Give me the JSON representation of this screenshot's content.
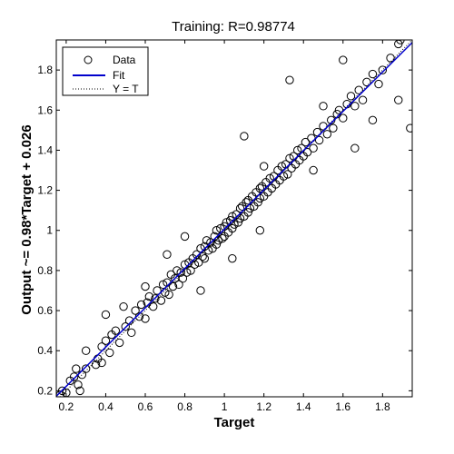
{
  "chart_data": {
    "type": "scatter",
    "title": "Training: R=0.98774",
    "xlabel": "Target",
    "ylabel": "Output ~= 0.98*Target + 0.026",
    "xlim": [
      0.15,
      1.95
    ],
    "ylim": [
      0.17,
      1.95
    ],
    "xticks": [
      0.2,
      0.4,
      0.6,
      0.8,
      1.0,
      1.2,
      1.4,
      1.6,
      1.8
    ],
    "xtick_labels": [
      "0.2",
      "0.4",
      "0.6",
      "0.8",
      "1",
      "1.2",
      "1.4",
      "1.6",
      "1.8"
    ],
    "yticks": [
      0.2,
      0.4,
      0.6,
      0.8,
      1.0,
      1.2,
      1.4,
      1.6,
      1.8
    ],
    "ytick_labels": [
      "0.2",
      "0.4",
      "0.6",
      "0.8",
      "1",
      "1.2",
      "1.4",
      "1.6",
      "1.8"
    ],
    "grid": false,
    "legend": {
      "placement": "top-left",
      "entries": [
        {
          "label": "Data",
          "marker": "circle",
          "color": "#000000"
        },
        {
          "label": "Fit",
          "line": "solid",
          "color": "#0000cc"
        },
        {
          "label": "Y = T",
          "line": "dotted",
          "color": "#000000"
        }
      ]
    },
    "fit": {
      "slope": 0.98,
      "intercept": 0.026
    },
    "series": [
      {
        "name": "Data",
        "points": [
          [
            0.17,
            0.18
          ],
          [
            0.18,
            0.2
          ],
          [
            0.2,
            0.19
          ],
          [
            0.22,
            0.25
          ],
          [
            0.24,
            0.27
          ],
          [
            0.25,
            0.31
          ],
          [
            0.26,
            0.23
          ],
          [
            0.27,
            0.2
          ],
          [
            0.28,
            0.28
          ],
          [
            0.3,
            0.31
          ],
          [
            0.35,
            0.33
          ],
          [
            0.36,
            0.36
          ],
          [
            0.38,
            0.34
          ],
          [
            0.38,
            0.42
          ],
          [
            0.4,
            0.45
          ],
          [
            0.42,
            0.39
          ],
          [
            0.43,
            0.48
          ],
          [
            0.45,
            0.5
          ],
          [
            0.47,
            0.44
          ],
          [
            0.5,
            0.52
          ],
          [
            0.52,
            0.55
          ],
          [
            0.53,
            0.49
          ],
          [
            0.55,
            0.6
          ],
          [
            0.57,
            0.57
          ],
          [
            0.58,
            0.63
          ],
          [
            0.6,
            0.56
          ],
          [
            0.61,
            0.64
          ],
          [
            0.62,
            0.67
          ],
          [
            0.64,
            0.62
          ],
          [
            0.65,
            0.66
          ],
          [
            0.66,
            0.7
          ],
          [
            0.68,
            0.65
          ],
          [
            0.69,
            0.73
          ],
          [
            0.7,
            0.69
          ],
          [
            0.71,
            0.74
          ],
          [
            0.72,
            0.68
          ],
          [
            0.73,
            0.78
          ],
          [
            0.74,
            0.72
          ],
          [
            0.75,
            0.76
          ],
          [
            0.76,
            0.8
          ],
          [
            0.77,
            0.73
          ],
          [
            0.78,
            0.79
          ],
          [
            0.79,
            0.76
          ],
          [
            0.8,
            0.83
          ],
          [
            0.81,
            0.79
          ],
          [
            0.82,
            0.84
          ],
          [
            0.83,
            0.8
          ],
          [
            0.84,
            0.86
          ],
          [
            0.85,
            0.83
          ],
          [
            0.86,
            0.88
          ],
          [
            0.87,
            0.84
          ],
          [
            0.88,
            0.91
          ],
          [
            0.89,
            0.87
          ],
          [
            0.9,
            0.92
          ],
          [
            0.9,
            0.86
          ],
          [
            0.91,
            0.95
          ],
          [
            0.92,
            0.9
          ],
          [
            0.93,
            0.94
          ],
          [
            0.94,
            0.91
          ],
          [
            0.95,
            0.97
          ],
          [
            0.96,
            0.93
          ],
          [
            0.96,
            1.0
          ],
          [
            0.97,
            0.95
          ],
          [
            0.98,
            1.01
          ],
          [
            0.99,
            0.96
          ],
          [
            1.0,
            1.02
          ],
          [
            1.0,
            0.97
          ],
          [
            1.01,
            1.04
          ],
          [
            1.02,
            0.99
          ],
          [
            1.03,
            1.05
          ],
          [
            1.04,
            1.01
          ],
          [
            1.04,
            1.07
          ],
          [
            1.05,
            1.03
          ],
          [
            1.06,
            1.08
          ],
          [
            1.07,
            1.04
          ],
          [
            1.08,
            1.11
          ],
          [
            1.08,
            1.06
          ],
          [
            1.09,
            1.12
          ],
          [
            1.1,
            1.07
          ],
          [
            1.11,
            1.14
          ],
          [
            1.12,
            1.09
          ],
          [
            1.12,
            1.15
          ],
          [
            1.13,
            1.11
          ],
          [
            1.14,
            1.17
          ],
          [
            1.15,
            1.12
          ],
          [
            1.16,
            1.19
          ],
          [
            1.17,
            1.14
          ],
          [
            1.18,
            1.21
          ],
          [
            1.18,
            1.16
          ],
          [
            1.19,
            1.22
          ],
          [
            1.2,
            1.17
          ],
          [
            1.21,
            1.24
          ],
          [
            1.22,
            1.19
          ],
          [
            1.23,
            1.26
          ],
          [
            1.24,
            1.21
          ],
          [
            1.25,
            1.27
          ],
          [
            1.26,
            1.23
          ],
          [
            1.27,
            1.3
          ],
          [
            1.28,
            1.25
          ],
          [
            1.29,
            1.32
          ],
          [
            1.3,
            1.27
          ],
          [
            1.31,
            1.33
          ],
          [
            1.32,
            1.28
          ],
          [
            1.33,
            1.36
          ],
          [
            1.34,
            1.31
          ],
          [
            1.35,
            1.37
          ],
          [
            1.36,
            1.33
          ],
          [
            1.37,
            1.4
          ],
          [
            1.38,
            1.35
          ],
          [
            1.39,
            1.41
          ],
          [
            1.4,
            1.37
          ],
          [
            1.41,
            1.44
          ],
          [
            1.42,
            1.39
          ],
          [
            1.44,
            1.46
          ],
          [
            1.45,
            1.41
          ],
          [
            1.47,
            1.49
          ],
          [
            1.48,
            1.45
          ],
          [
            1.5,
            1.52
          ],
          [
            1.52,
            1.48
          ],
          [
            1.54,
            1.55
          ],
          [
            1.55,
            1.51
          ],
          [
            1.57,
            1.58
          ],
          [
            1.58,
            1.6
          ],
          [
            1.6,
            1.56
          ],
          [
            1.62,
            1.63
          ],
          [
            1.64,
            1.67
          ],
          [
            1.66,
            1.62
          ],
          [
            1.68,
            1.7
          ],
          [
            1.7,
            1.65
          ],
          [
            1.72,
            1.74
          ],
          [
            1.75,
            1.78
          ],
          [
            1.78,
            1.73
          ],
          [
            1.8,
            1.8
          ],
          [
            1.84,
            1.86
          ],
          [
            1.88,
            1.93
          ],
          [
            1.89,
            1.95
          ],
          [
            1.1,
            1.47
          ],
          [
            1.6,
            1.85
          ],
          [
            1.66,
            1.41
          ],
          [
            1.75,
            1.55
          ],
          [
            1.88,
            1.65
          ],
          [
            1.94,
            1.51
          ],
          [
            1.33,
            1.75
          ],
          [
            1.04,
            0.86
          ],
          [
            0.8,
            0.97
          ],
          [
            0.6,
            0.72
          ],
          [
            0.4,
            0.58
          ],
          [
            1.5,
            1.62
          ],
          [
            0.88,
            0.7
          ],
          [
            0.3,
            0.4
          ],
          [
            1.2,
            1.32
          ],
          [
            1.18,
            1.0
          ],
          [
            0.71,
            0.88
          ],
          [
            0.49,
            0.62
          ],
          [
            1.45,
            1.3
          ]
        ]
      }
    ]
  }
}
